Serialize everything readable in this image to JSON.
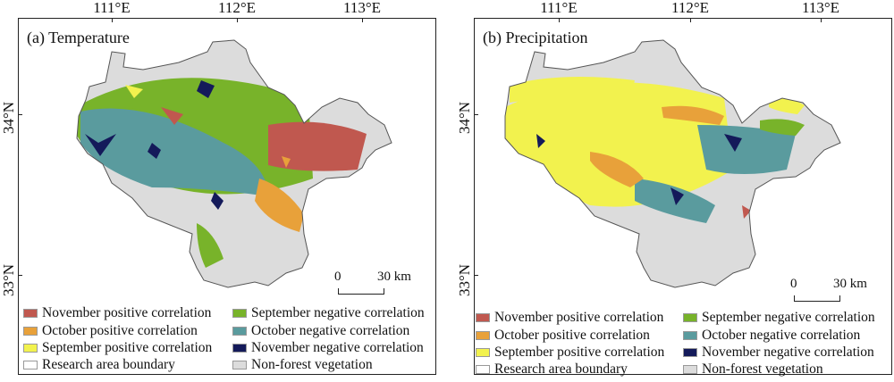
{
  "panels": [
    {
      "title": "(a) Temperature",
      "lon_labels": [
        "111°E",
        "112°E",
        "113°E"
      ],
      "lat_labels": [
        "34°N",
        "33°N"
      ],
      "scale": {
        "start": "0",
        "end": "30 km"
      },
      "legend": [
        {
          "label": "November positive correlation",
          "color": "#c0584f"
        },
        {
          "label": "September negative correlation",
          "color": "#78b32a"
        },
        {
          "label": "October positive correlation",
          "color": "#e8a13a"
        },
        {
          "label": "October negative correlation",
          "color": "#5a9b9e"
        },
        {
          "label": "September positive correlation",
          "color": "#f2f24e"
        },
        {
          "label": "November negative correlation",
          "color": "#141a5a"
        },
        {
          "label": "Research area boundary",
          "color": "#ffffff"
        },
        {
          "label": "Non-forest vegetation",
          "color": "#dcdcdc"
        }
      ]
    },
    {
      "title": "(b) Precipitation",
      "lon_labels": [
        "111°E",
        "112°E",
        "113°E"
      ],
      "lat_labels": [
        "34°N",
        "33°N"
      ],
      "scale": {
        "start": "0",
        "end": "30 km"
      },
      "legend": [
        {
          "label": "November positive correlation",
          "color": "#c0584f"
        },
        {
          "label": "September negative correlation",
          "color": "#78b32a"
        },
        {
          "label": "October positive correlation",
          "color": "#e8a13a"
        },
        {
          "label": "October negative correlation",
          "color": "#5a9b9e"
        },
        {
          "label": "September positive correlation",
          "color": "#f2f24e"
        },
        {
          "label": "November negative correlation",
          "color": "#141a5a"
        },
        {
          "label": "Research area boundary",
          "color": "#ffffff"
        },
        {
          "label": "Non-forest vegetation",
          "color": "#dcdcdc"
        }
      ]
    }
  ]
}
